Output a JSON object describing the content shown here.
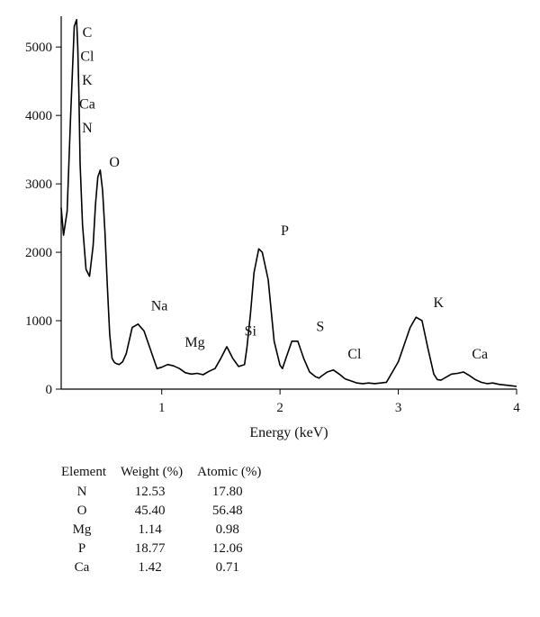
{
  "chart_data": {
    "type": "line",
    "title": "",
    "xlabel": "Energy (keV)",
    "ylabel": "",
    "xlim": [
      0.15,
      4.0
    ],
    "ylim": [
      0,
      5450
    ],
    "xticks": [
      1,
      2,
      3,
      4
    ],
    "yticks": [
      0,
      1000,
      2000,
      3000,
      4000,
      5000
    ],
    "grid": false,
    "series": [
      {
        "x": [
          0.15,
          0.17,
          0.2,
          0.23,
          0.26,
          0.28,
          0.29,
          0.3,
          0.31,
          0.33,
          0.36,
          0.39,
          0.42,
          0.44,
          0.46,
          0.48,
          0.5,
          0.52,
          0.54,
          0.56,
          0.58,
          0.6,
          0.62,
          0.64,
          0.67,
          0.7,
          0.75,
          0.8,
          0.85,
          0.9,
          0.93,
          0.96,
          1.0,
          1.05,
          1.1,
          1.15,
          1.2,
          1.25,
          1.3,
          1.35,
          1.4,
          1.45,
          1.5,
          1.55,
          1.6,
          1.65,
          1.7,
          1.72,
          1.75,
          1.78,
          1.82,
          1.85,
          1.9,
          1.95,
          2.0,
          2.02,
          2.05,
          2.1,
          2.15,
          2.2,
          2.25,
          2.3,
          2.33,
          2.35,
          2.4,
          2.45,
          2.5,
          2.55,
          2.6,
          2.65,
          2.7,
          2.75,
          2.8,
          2.9,
          3.0,
          3.1,
          3.15,
          3.2,
          3.25,
          3.3,
          3.33,
          3.36,
          3.4,
          3.45,
          3.5,
          3.55,
          3.6,
          3.65,
          3.7,
          3.75,
          3.8,
          3.85,
          3.9,
          3.95,
          4.0
        ],
        "y": [
          2650,
          2250,
          2600,
          4000,
          5300,
          5400,
          5000,
          4300,
          3300,
          2400,
          1750,
          1650,
          2100,
          2700,
          3100,
          3200,
          2900,
          2300,
          1500,
          800,
          450,
          390,
          370,
          360,
          400,
          520,
          900,
          950,
          850,
          600,
          450,
          300,
          320,
          360,
          340,
          300,
          240,
          220,
          230,
          210,
          260,
          300,
          450,
          620,
          450,
          330,
          360,
          600,
          1100,
          1700,
          2050,
          2000,
          1600,
          700,
          350,
          300,
          450,
          700,
          700,
          450,
          250,
          180,
          160,
          190,
          250,
          280,
          220,
          150,
          120,
          90,
          80,
          90,
          80,
          100,
          400,
          900,
          1050,
          1000,
          600,
          220,
          140,
          130,
          170,
          220,
          230,
          250,
          200,
          140,
          100,
          80,
          90,
          70,
          60,
          50,
          40
        ]
      }
    ],
    "peak_labels": [
      {
        "text": "C",
        "x": 0.37,
        "y": 5150
      },
      {
        "text": "Cl",
        "x": 0.37,
        "y": 4800
      },
      {
        "text": "K",
        "x": 0.37,
        "y": 4450
      },
      {
        "text": "Ca",
        "x": 0.37,
        "y": 4100
      },
      {
        "text": "N",
        "x": 0.37,
        "y": 3750
      },
      {
        "text": "O",
        "x": 0.6,
        "y": 3250
      },
      {
        "text": "Na",
        "x": 0.98,
        "y": 1150
      },
      {
        "text": "Mg",
        "x": 1.28,
        "y": 620
      },
      {
        "text": "Si",
        "x": 1.75,
        "y": 780
      },
      {
        "text": "P",
        "x": 2.04,
        "y": 2250
      },
      {
        "text": "S",
        "x": 2.34,
        "y": 850
      },
      {
        "text": "Cl",
        "x": 2.63,
        "y": 450
      },
      {
        "text": "K",
        "x": 3.34,
        "y": 1200
      },
      {
        "text": "Ca",
        "x": 3.69,
        "y": 450
      }
    ]
  },
  "table": {
    "headers": [
      "Element",
      "Weight (%)",
      "Atomic (%)"
    ],
    "rows": [
      [
        "N",
        "12.53",
        "17.80"
      ],
      [
        "O",
        "45.40",
        "56.48"
      ],
      [
        "Mg",
        "1.14",
        "0.98"
      ],
      [
        "P",
        "18.77",
        "12.06"
      ],
      [
        "Ca",
        "1.42",
        "0.71"
      ]
    ]
  }
}
